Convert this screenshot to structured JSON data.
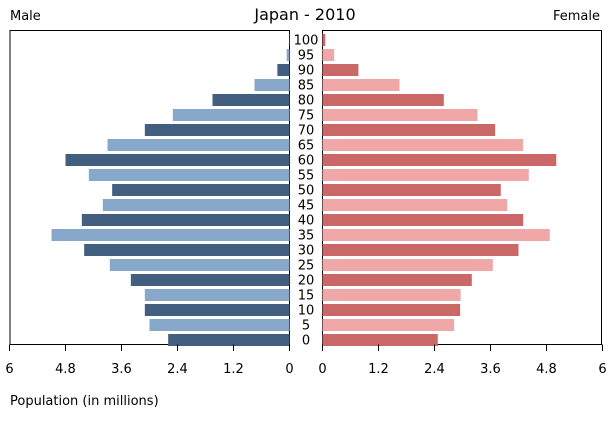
{
  "chart_data": {
    "type": "bar",
    "title": "Japan - 2010",
    "left_label": "Male",
    "right_label": "Female",
    "xlabel": "Population (in millions)",
    "xlim": [
      0,
      6
    ],
    "x_ticks": [
      6,
      4.8,
      3.6,
      2.4,
      1.2,
      0
    ],
    "female_x_ticks": [
      0,
      1.2,
      2.4,
      3.6,
      4.8,
      6
    ],
    "categories": [
      "0",
      "5",
      "10",
      "15",
      "20",
      "25",
      "30",
      "35",
      "40",
      "45",
      "50",
      "55",
      "60",
      "65",
      "70",
      "75",
      "80",
      "85",
      "90",
      "95",
      "100"
    ],
    "series": [
      {
        "name": "Male",
        "values": [
          2.6,
          3.0,
          3.1,
          3.1,
          3.4,
          3.85,
          4.4,
          5.1,
          4.45,
          4.0,
          3.8,
          4.3,
          4.8,
          3.9,
          3.1,
          2.5,
          1.65,
          0.75,
          0.26,
          0.06,
          0.01
        ]
      },
      {
        "name": "Female",
        "values": [
          2.47,
          2.82,
          2.95,
          2.96,
          3.2,
          3.65,
          4.2,
          4.87,
          4.3,
          3.96,
          3.82,
          4.42,
          5.01,
          4.3,
          3.7,
          3.32,
          2.6,
          1.65,
          0.77,
          0.25,
          0.06
        ]
      }
    ],
    "colors": {
      "male_dark": "#435f80",
      "male_light": "#88a8cb",
      "female_dark": "#ca6867",
      "female_light": "#efa8a7"
    },
    "grid": false,
    "legend": "none"
  }
}
